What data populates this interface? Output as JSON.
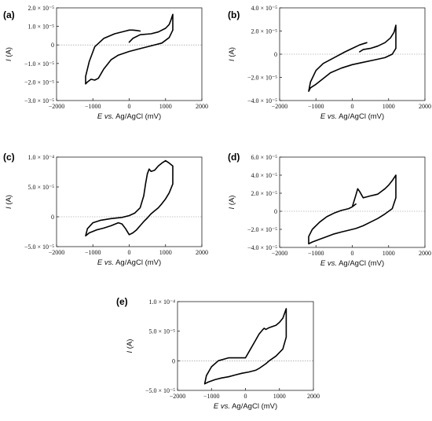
{
  "chart_data": [
    {
      "panel": "(a)",
      "type": "line",
      "xlabel_pre": "E",
      "xlabel_post": " vs. Ag/AgCl (mV)",
      "ylabel_pre": "I",
      "ylabel_post": " (A)",
      "xlim": [
        -2000,
        2000
      ],
      "ylim": [
        -3e-05,
        2e-05
      ],
      "xticks": [
        -2000,
        -1000,
        0,
        1000,
        2000
      ],
      "xtick_labels": [
        "−2000",
        "−1000",
        "0",
        "1000",
        "2000"
      ],
      "yticks": [
        -3e-05,
        -2e-05,
        -1e-05,
        0,
        1e-05,
        2e-05
      ],
      "ytick_labels": [
        "−3.0 × 10⁻⁵",
        "−2.0 × 10⁻⁵",
        "−1.0 × 10⁻⁵",
        "0",
        "1.0 × 10⁻⁵",
        "2.0 × 10⁻⁵"
      ],
      "series": [
        {
          "x": [
            0,
            100,
            300,
            600,
            800,
            1000,
            1100,
            1150,
            1200,
            1200,
            1100,
            900,
            600,
            300,
            0,
            -300,
            -500,
            -700,
            -850,
            -950,
            -1050,
            -1150,
            -1200,
            -1200,
            -1100,
            -950,
            -700,
            -400,
            -100,
            0,
            100,
            200,
            300
          ],
          "y": [
            1.5e-06,
            3.5e-06,
            5.5e-06,
            6e-06,
            7e-06,
            9e-06,
            1.1e-05,
            1.35e-05,
            1.65e-05,
            8e-06,
            4e-06,
            1e-06,
            -5e-07,
            -2e-06,
            -3.5e-06,
            -5.5e-06,
            -8e-06,
            -1.3e-05,
            -1.8e-05,
            -1.9e-05,
            -1.85e-05,
            -2e-05,
            -2.1e-05,
            -1.7e-05,
            -9e-06,
            -1e-06,
            3.5e-06,
            6e-06,
            7.5e-06,
            8e-06,
            8e-06,
            7.8e-06,
            7.5e-06
          ]
        }
      ]
    },
    {
      "panel": "(b)",
      "type": "line",
      "xlabel_pre": "E",
      "xlabel_post": " vs. Ag/AgCl (mV)",
      "ylabel_pre": "I",
      "ylabel_post": " (A)",
      "xlim": [
        -2000,
        2000
      ],
      "ylim": [
        -4e-05,
        4e-05
      ],
      "xticks": [
        -2000,
        -1000,
        0,
        1000,
        2000
      ],
      "xtick_labels": [
        "−2000",
        "−1000",
        "0",
        "1000",
        "2000"
      ],
      "yticks": [
        -4e-05,
        -2e-05,
        0,
        2e-05,
        4e-05
      ],
      "ytick_labels": [
        "−4.0 × 10⁻⁵",
        "−2.0 × 10⁻⁵",
        "0",
        "2.0 × 10⁻⁵",
        "4.0 × 10⁻⁵"
      ],
      "series": [
        {
          "x": [
            200,
            300,
            500,
            700,
            900,
            1050,
            1150,
            1200,
            1200,
            1100,
            900,
            600,
            300,
            0,
            -300,
            -600,
            -800,
            -1000,
            -1150,
            -1200,
            -1150,
            -1000,
            -800,
            -500,
            -200,
            0,
            200,
            400
          ],
          "y": [
            2e-06,
            4e-06,
            5e-06,
            7e-06,
            1e-05,
            1.4e-05,
            1.9e-05,
            2.5e-05,
            5e-06,
            0.0,
            -3e-06,
            -5e-06,
            -7e-06,
            -9e-06,
            -1.2e-05,
            -1.6e-05,
            -2.1e-05,
            -2.6e-05,
            -2.9e-05,
            -3.2e-05,
            -2.4e-05,
            -1.4e-05,
            -8e-06,
            -3e-06,
            2e-06,
            5e-06,
            8e-06,
            1e-05
          ]
        }
      ]
    },
    {
      "panel": "(c)",
      "type": "line",
      "xlabel_pre": "E",
      "xlabel_post": " vs. Ag/AgCl (mV)",
      "ylabel_pre": "I",
      "ylabel_post": " (A)",
      "xlim": [
        -2000,
        2000
      ],
      "ylim": [
        -5e-05,
        0.0001
      ],
      "xticks": [
        -2000,
        -1000,
        0,
        1000,
        2000
      ],
      "xtick_labels": [
        "−2000",
        "−1000",
        "0",
        "1000",
        "2000"
      ],
      "yticks": [
        -5e-05,
        0,
        5e-05,
        0.0001
      ],
      "ytick_labels": [
        "−5.0 × 10⁻⁵",
        "0",
        "5.0 × 10⁻⁵",
        "1.0 × 10⁻⁴"
      ],
      "series": [
        {
          "x": [
            0,
            150,
            300,
            400,
            450,
            500,
            550,
            600,
            700,
            800,
            900,
            1000,
            1100,
            1200,
            1200,
            1100,
            1000,
            900,
            800,
            700,
            600,
            500,
            400,
            300,
            200,
            100,
            0,
            -100,
            -200,
            -300,
            -500,
            -700,
            -900,
            -1100,
            -1200,
            -1150,
            -1000,
            -800,
            -500,
            -200,
            0
          ],
          "y": [
            2e-06,
            6e-06,
            1.5e-05,
            3.5e-05,
            5.5e-05,
            7.2e-05,
            8e-05,
            7.6e-05,
            7.8e-05,
            8.5e-05,
            9e-05,
            9.4e-05,
            9e-05,
            8.5e-05,
            5.5e-05,
            4e-05,
            3e-05,
            2.2e-05,
            1.5e-05,
            1e-05,
            5e-06,
            -2e-06,
            -8e-06,
            -1.5e-05,
            -2.2e-05,
            -2.7e-05,
            -3e-05,
            -2e-05,
            -1.2e-05,
            -1e-05,
            -1.5e-05,
            -1.9e-05,
            -2.2e-05,
            -2.7e-05,
            -3.2e-05,
            -2e-05,
            -1e-05,
            -6e-06,
            -3e-06,
            -1e-06,
            2e-06
          ]
        }
      ]
    },
    {
      "panel": "(d)",
      "type": "line",
      "xlabel_pre": "E",
      "xlabel_post": " vs. Ag/AgCl (mV)",
      "ylabel_pre": "I",
      "ylabel_post": " (A)",
      "xlim": [
        -2000,
        2000
      ],
      "ylim": [
        -4e-05,
        6e-05
      ],
      "xticks": [
        -2000,
        -1000,
        0,
        1000,
        2000
      ],
      "xtick_labels": [
        "−2000",
        "−1000",
        "0",
        "1000",
        "2000"
      ],
      "yticks": [
        -4e-05,
        -2e-05,
        0,
        2e-05,
        4e-05,
        6e-05
      ],
      "ytick_labels": [
        "−4.0 × 10⁻⁵",
        "−2.0 × 10⁻⁵",
        "0",
        "2.0 × 10⁻⁵",
        "4.0 × 10⁻⁵",
        "6.0 × 10⁻⁵"
      ],
      "series": [
        {
          "x": [
            0,
            100,
            150,
            200,
            300,
            400,
            500,
            600,
            700,
            800,
            900,
            1000,
            1100,
            1200,
            1200,
            1100,
            900,
            700,
            500,
            300,
            100,
            -100,
            -300,
            -500,
            -700,
            -900,
            -1100,
            -1200,
            -1200,
            -1100,
            -900,
            -700,
            -500,
            -300,
            -100,
            0,
            100
          ],
          "y": [
            5e-06,
            1.8e-05,
            2.5e-05,
            2.2e-05,
            1.5e-05,
            1.6e-05,
            1.7e-05,
            1.8e-05,
            1.9e-05,
            2.2e-05,
            2.5e-05,
            2.9e-05,
            3.4e-05,
            4e-05,
            1.5e-05,
            3e-06,
            -3e-06,
            -8e-06,
            -1.2e-05,
            -1.6e-05,
            -1.9e-05,
            -2.1e-05,
            -2.3e-05,
            -2.5e-05,
            -2.8e-05,
            -3.1e-05,
            -3.4e-05,
            -3.6e-05,
            -2.8e-05,
            -2e-05,
            -1.2e-05,
            -6e-06,
            -2e-06,
            1e-06,
            3e-06,
            5e-06,
            8e-06
          ]
        }
      ]
    },
    {
      "panel": "(e)",
      "type": "line",
      "xlabel_pre": "E",
      "xlabel_post": " vs. Ag/AgCl (mV)",
      "ylabel_pre": "I",
      "ylabel_post": " (A)",
      "xlim": [
        -2000,
        2000
      ],
      "ylim": [
        -5e-05,
        0.0001
      ],
      "xticks": [
        -2000,
        -1000,
        0,
        1000,
        2000
      ],
      "xtick_labels": [
        "−2000",
        "−1000",
        "0",
        "1000",
        "2000"
      ],
      "yticks": [
        -5e-05,
        0,
        5e-05,
        0.0001
      ],
      "ytick_labels": [
        "−5.0 × 10⁻⁵",
        "0",
        "5.0 × 10⁻⁵",
        "1.0 × 10⁻⁴"
      ],
      "series": [
        {
          "x": [
            0,
            150,
            300,
            400,
            500,
            550,
            600,
            700,
            800,
            900,
            1000,
            1100,
            1200,
            1200,
            1100,
            900,
            700,
            600,
            500,
            400,
            300,
            100,
            -100,
            -300,
            -500,
            -700,
            -900,
            -1100,
            -1200,
            -1150,
            -1000,
            -800,
            -500,
            -200,
            0
          ],
          "y": [
            5e-06,
            2e-05,
            3.5e-05,
            4.5e-05,
            5.2e-05,
            5.5e-05,
            5.3e-05,
            5.6e-05,
            5.8e-05,
            6e-05,
            6.5e-05,
            7.2e-05,
            8.8e-05,
            4e-05,
            2e-05,
            8e-06,
            0.0,
            -5e-06,
            -9e-06,
            -1.3e-05,
            -1.6e-05,
            -1.9e-05,
            -2.1e-05,
            -2.4e-05,
            -2.7e-05,
            -2.9e-05,
            -3.2e-05,
            -3.6e-05,
            -3.9e-05,
            -2.5e-05,
            -1e-05,
            0.0,
            5e-06,
            5e-06,
            5e-06
          ]
        }
      ]
    }
  ]
}
